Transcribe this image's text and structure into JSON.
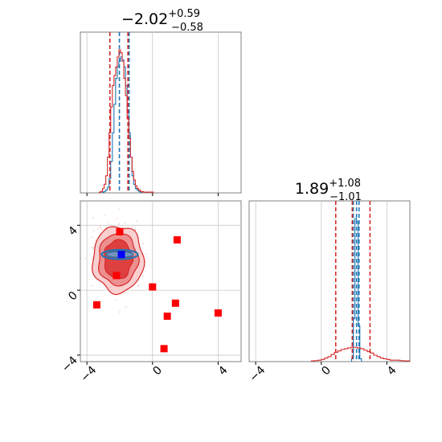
{
  "chart_data": [
    {
      "type": "histogram",
      "panel": "top-left",
      "title": "−2.02",
      "title_sup": "+0.59",
      "title_sub": "−0.58",
      "xlim": [
        -4.4,
        5.4
      ],
      "grid": true,
      "series": [
        {
          "color": "#1f77b4",
          "bins_x": [
            -3.0,
            -2.9,
            -2.8,
            -2.7,
            -2.6,
            -2.5,
            -2.4,
            -2.3,
            -2.2,
            -2.1,
            -2.0,
            -1.9,
            -1.8,
            -1.7,
            -1.6,
            -1.5,
            -1.4,
            -1.3,
            -1.2,
            -1.1,
            -1.0,
            -0.9,
            -0.8,
            -0.7
          ],
          "heights": [
            0.5,
            1,
            2,
            4,
            10,
            22,
            42,
            62,
            80,
            88,
            92,
            95,
            93,
            88,
            75,
            58,
            42,
            25,
            12,
            6,
            3,
            2,
            1,
            0.5
          ],
          "quantile_lines": [
            -2.6,
            -2.02,
            -1.43
          ]
        },
        {
          "color": "#d62728",
          "bins_x": [
            -3.2,
            -3.1,
            -3.0,
            -2.9,
            -2.8,
            -2.7,
            -2.6,
            -2.5,
            -2.4,
            -2.3,
            -2.2,
            -2.1,
            -2.0,
            -1.9,
            -1.8,
            -1.7,
            -1.6,
            -1.5,
            -1.4,
            -1.3,
            -1.2,
            -1.1,
            -1.0,
            -0.9,
            -0.8,
            -0.7,
            -0.6,
            -0.5,
            -0.4,
            -0.3,
            -0.2,
            -0.1,
            0.0
          ],
          "heights": [
            0.5,
            1,
            3,
            6,
            12,
            25,
            42,
            60,
            75,
            82,
            88,
            95,
            100,
            98,
            92,
            80,
            68,
            52,
            38,
            25,
            15,
            9,
            5,
            3,
            2,
            1,
            0.8,
            0.5,
            0.5,
            0.5,
            0.5,
            0.5,
            0.5
          ],
          "quantile_lines": [
            -2.6,
            -1.5
          ]
        }
      ]
    },
    {
      "type": "scatter",
      "panel": "bottom-left",
      "xlim": [
        -4.4,
        5.4
      ],
      "ylim": [
        -4.4,
        5.5
      ],
      "x_ticks": [
        "−4",
        "0",
        "4"
      ],
      "y_ticks": [
        "−4",
        "0",
        "4"
      ],
      "grid": true,
      "red_contour_center": [
        -2.1,
        1.9
      ],
      "red_points": [
        [
          -2.0,
          3.6
        ],
        [
          1.5,
          3.1
        ],
        [
          -1.9,
          2.2
        ],
        [
          -2.2,
          0.9
        ],
        [
          0.0,
          0.2
        ],
        [
          -3.4,
          -0.9
        ],
        [
          1.4,
          -0.8
        ],
        [
          0.9,
          -1.6
        ],
        [
          4.0,
          -1.4
        ],
        [
          0.7,
          -3.6
        ]
      ],
      "blue_point": [
        -1.9,
        2.2
      ],
      "blue_band": {
        "center": [
          -2.0,
          2.2
        ],
        "x_halfwidth": 1.1,
        "y_halfwidth": 0.18
      }
    },
    {
      "type": "histogram",
      "panel": "bottom-right",
      "title": "1.89",
      "title_sup": "+1.08",
      "title_sub": "−1.01",
      "xlim": [
        -4.4,
        5.4
      ],
      "x_ticks": [
        "−4",
        "0",
        "4"
      ],
      "grid": true,
      "series": [
        {
          "color": "#1f77b4",
          "bins_x": [
            1.9,
            2.0,
            2.1,
            2.2,
            2.3,
            2.4
          ],
          "heights": [
            2,
            30,
            100,
            98,
            25,
            2
          ],
          "quantile_lines": [
            1.95,
            2.15,
            2.3
          ]
        },
        {
          "color": "#d62728",
          "bins_x": [
            -0.5,
            -0.3,
            -0.1,
            0.1,
            0.3,
            0.5,
            0.7,
            0.9,
            1.1,
            1.3,
            1.5,
            1.7,
            1.9,
            2.1,
            2.3,
            2.5,
            2.7,
            2.9,
            3.1,
            3.3,
            3.5,
            3.7,
            3.9,
            4.1,
            4.3,
            4.5,
            4.7,
            4.9,
            5.1,
            5.3
          ],
          "heights": [
            0.5,
            0.7,
            1,
            1.5,
            2.5,
            3.5,
            5,
            6.5,
            7.5,
            8.5,
            9,
            9.5,
            10,
            10,
            9.5,
            9,
            8,
            7,
            6,
            4.5,
            3.5,
            2.5,
            2,
            1.5,
            1,
            1,
            1,
            0.7,
            0.5,
            0.5
          ],
          "quantile_lines": [
            0.88,
            1.89,
            2.97
          ]
        }
      ]
    }
  ]
}
